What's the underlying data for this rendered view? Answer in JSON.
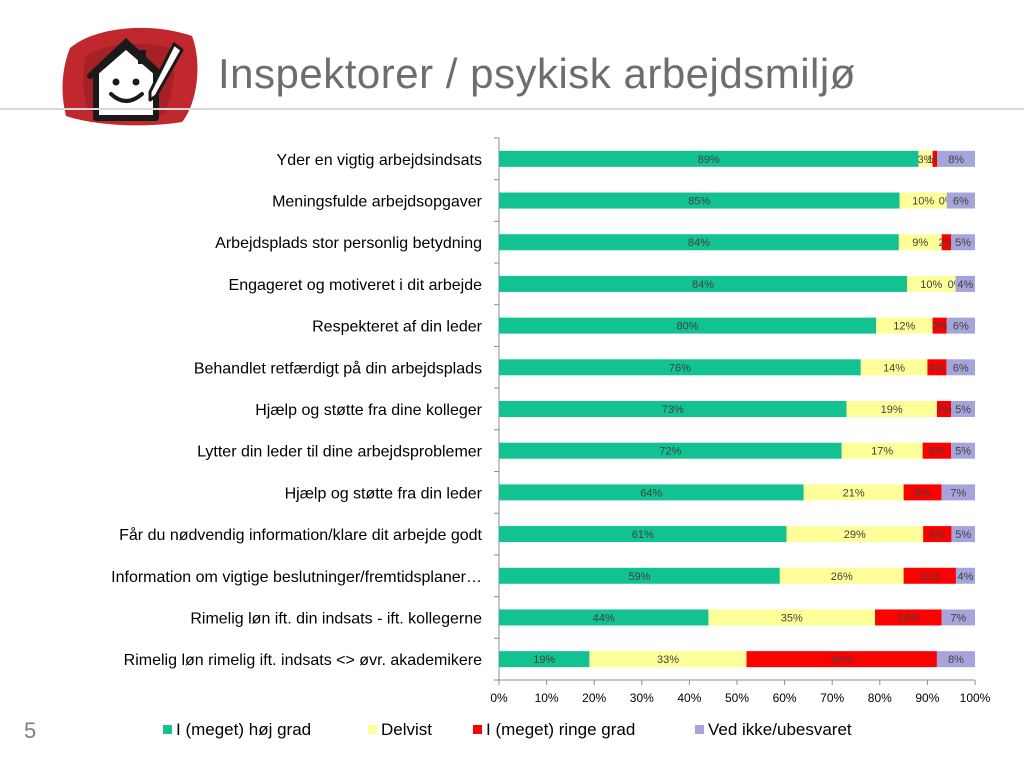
{
  "slide": {
    "title": "Inspektorer / psykisk arbejdsmiljø",
    "number": "5"
  },
  "colors": {
    "high": "#12c291",
    "partly": "#ffff99",
    "low": "#ff0000",
    "unknown": "#a5a5dc",
    "logo_red": "#c0282d",
    "title_grey": "#6d6d6d"
  },
  "icons": [
    "house-smiley-pencil-logo"
  ],
  "chart_data": {
    "type": "bar",
    "orientation": "horizontal",
    "stacked": true,
    "normalized": true,
    "categories": [
      "Yder en vigtig arbejdsindsats",
      "Meningsfulde arbejdsopgaver",
      "Arbejdsplads stor personlig betydning",
      "Engageret og motiveret i dit arbejde",
      "Respekteret af din leder",
      "Behandlet retfærdigt på din arbejdsplads",
      "Hjælp og støtte fra dine kolleger",
      "Lytter din leder til dine arbejdsproblemer",
      "Hjælp og støtte fra din leder",
      "Får du nødvendig information/klare dit arbejde godt",
      "Information om vigtige beslutninger/fremtidsplaner…",
      "Rimelig løn ift. din indsats - ift. kollegerne",
      "Rimelig løn rimelig ift. indsats <> øvr. akademikere"
    ],
    "series": [
      {
        "name": "I (meget) høj grad",
        "values": [
          89,
          85,
          84,
          84,
          80,
          76,
          73,
          72,
          64,
          61,
          59,
          44,
          19
        ]
      },
      {
        "name": "Delvist",
        "values": [
          3,
          10,
          9,
          10,
          12,
          14,
          19,
          17,
          21,
          29,
          26,
          35,
          33
        ]
      },
      {
        "name": "I (meget) ringe grad",
        "values": [
          1,
          0,
          2,
          0,
          3,
          4,
          3,
          6,
          8,
          6,
          11,
          14,
          40
        ]
      },
      {
        "name": "Ved ikke/ubesvaret",
        "values": [
          8,
          6,
          5,
          4,
          6,
          6,
          5,
          5,
          7,
          5,
          4,
          7,
          8
        ]
      }
    ],
    "xlim": [
      0,
      100
    ],
    "xticks": [
      "0%",
      "10%",
      "20%",
      "30%",
      "40%",
      "50%",
      "60%",
      "70%",
      "80%",
      "90%",
      "100%"
    ],
    "value_suffix": "%",
    "legend_position": "bottom",
    "grid": false
  }
}
